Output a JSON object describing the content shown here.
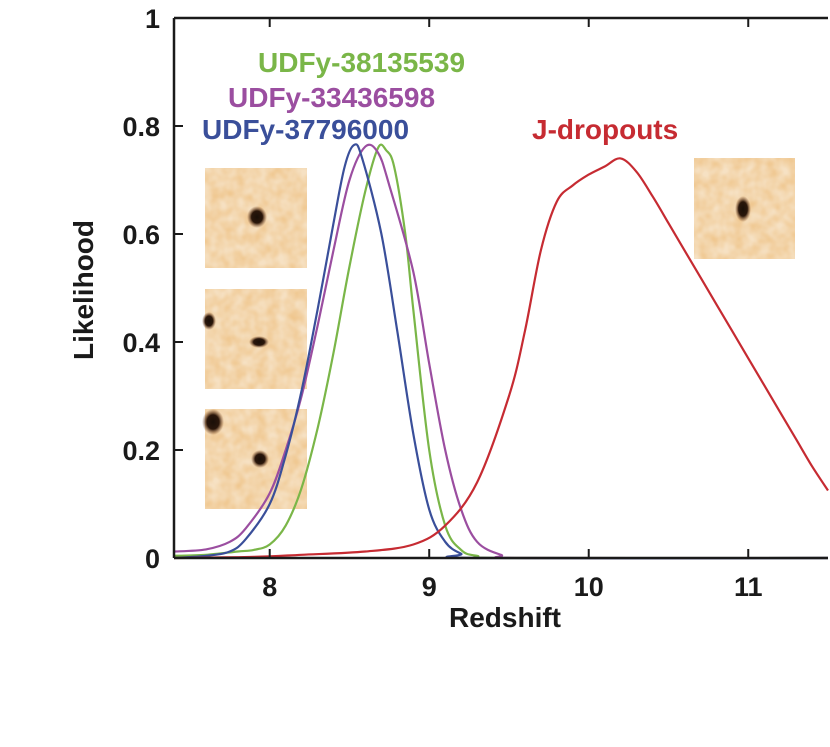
{
  "chart_data": {
    "type": "line",
    "title": "",
    "xlabel": "Redshift",
    "ylabel": "Likelihood",
    "xlim": [
      7.4,
      11.5
    ],
    "ylim": [
      0,
      1
    ],
    "xticks": [
      8,
      9,
      10,
      11
    ],
    "yticks": [
      0,
      0.2,
      0.4,
      0.6,
      0.8,
      1
    ],
    "ytick_labels": [
      "0",
      "0.2",
      "0.4",
      "0.6",
      "0.8",
      "1"
    ],
    "grid": false,
    "series": [
      {
        "name": "UDFy-38135539",
        "color": "#7ab648",
        "points": [
          [
            7.4,
            0.004
          ],
          [
            7.6,
            0.006
          ],
          [
            7.8,
            0.012
          ],
          [
            7.9,
            0.015
          ],
          [
            8.0,
            0.025
          ],
          [
            8.1,
            0.06
          ],
          [
            8.2,
            0.13
          ],
          [
            8.3,
            0.24
          ],
          [
            8.4,
            0.38
          ],
          [
            8.5,
            0.54
          ],
          [
            8.6,
            0.68
          ],
          [
            8.68,
            0.76
          ],
          [
            8.73,
            0.755
          ],
          [
            8.78,
            0.725
          ],
          [
            8.85,
            0.6
          ],
          [
            8.9,
            0.46
          ],
          [
            9.0,
            0.2
          ],
          [
            9.1,
            0.06
          ],
          [
            9.2,
            0.015
          ],
          [
            9.3,
            0.004
          ],
          [
            9.5,
            0.0
          ],
          [
            11.5,
            0.0
          ]
        ]
      },
      {
        "name": "UDFy-33436598",
        "color": "#9b4ea0",
        "points": [
          [
            7.4,
            0.012
          ],
          [
            7.6,
            0.016
          ],
          [
            7.75,
            0.03
          ],
          [
            7.85,
            0.055
          ],
          [
            8.0,
            0.12
          ],
          [
            8.1,
            0.2
          ],
          [
            8.2,
            0.3
          ],
          [
            8.3,
            0.43
          ],
          [
            8.4,
            0.57
          ],
          [
            8.5,
            0.7
          ],
          [
            8.6,
            0.762
          ],
          [
            8.68,
            0.75
          ],
          [
            8.75,
            0.69
          ],
          [
            8.9,
            0.53
          ],
          [
            9.0,
            0.36
          ],
          [
            9.1,
            0.2
          ],
          [
            9.2,
            0.09
          ],
          [
            9.3,
            0.03
          ],
          [
            9.45,
            0.006
          ],
          [
            9.6,
            0.0
          ],
          [
            11.5,
            0.0
          ]
        ]
      },
      {
        "name": "UDFy-37796000",
        "color": "#3a4f9a",
        "points": [
          [
            7.4,
            0.0
          ],
          [
            7.6,
            0.004
          ],
          [
            7.75,
            0.012
          ],
          [
            7.85,
            0.035
          ],
          [
            8.0,
            0.1
          ],
          [
            8.1,
            0.19
          ],
          [
            8.2,
            0.31
          ],
          [
            8.3,
            0.46
          ],
          [
            8.4,
            0.62
          ],
          [
            8.47,
            0.725
          ],
          [
            8.53,
            0.765
          ],
          [
            8.58,
            0.74
          ],
          [
            8.7,
            0.6
          ],
          [
            8.8,
            0.42
          ],
          [
            8.9,
            0.23
          ],
          [
            9.0,
            0.09
          ],
          [
            9.1,
            0.03
          ],
          [
            9.2,
            0.008
          ],
          [
            9.3,
            0.0
          ],
          [
            11.5,
            0.0
          ]
        ]
      },
      {
        "name": "J-dropouts",
        "color": "#c62b32",
        "points": [
          [
            7.4,
            0.0
          ],
          [
            7.9,
            0.002
          ],
          [
            8.2,
            0.006
          ],
          [
            8.6,
            0.012
          ],
          [
            8.9,
            0.025
          ],
          [
            9.1,
            0.06
          ],
          [
            9.3,
            0.14
          ],
          [
            9.5,
            0.3
          ],
          [
            9.6,
            0.42
          ],
          [
            9.7,
            0.57
          ],
          [
            9.8,
            0.66
          ],
          [
            9.9,
            0.69
          ],
          [
            10.0,
            0.71
          ],
          [
            10.1,
            0.725
          ],
          [
            10.2,
            0.74
          ],
          [
            10.3,
            0.715
          ],
          [
            10.4,
            0.67
          ],
          [
            10.5,
            0.62
          ],
          [
            10.6,
            0.57
          ],
          [
            10.7,
            0.52
          ],
          [
            10.8,
            0.47
          ],
          [
            10.9,
            0.42
          ],
          [
            11.0,
            0.37
          ],
          [
            11.1,
            0.32
          ],
          [
            11.2,
            0.27
          ],
          [
            11.3,
            0.22
          ],
          [
            11.4,
            0.17
          ],
          [
            11.5,
            0.125
          ]
        ]
      }
    ],
    "annotations": [
      {
        "text": "UDFy-38135539",
        "series": "UDFy-38135539"
      },
      {
        "text": "UDFy-33436598",
        "series": "UDFy-33436598"
      },
      {
        "text": "UDFy-37796000",
        "series": "UDFy-37796000"
      },
      {
        "text": "J-dropouts",
        "series": "J-dropouts"
      }
    ],
    "insets": [
      {
        "name": "inset-udfy-38135539"
      },
      {
        "name": "inset-udfy-33436598"
      },
      {
        "name": "inset-udfy-37796000"
      },
      {
        "name": "inset-j-dropouts"
      }
    ]
  }
}
